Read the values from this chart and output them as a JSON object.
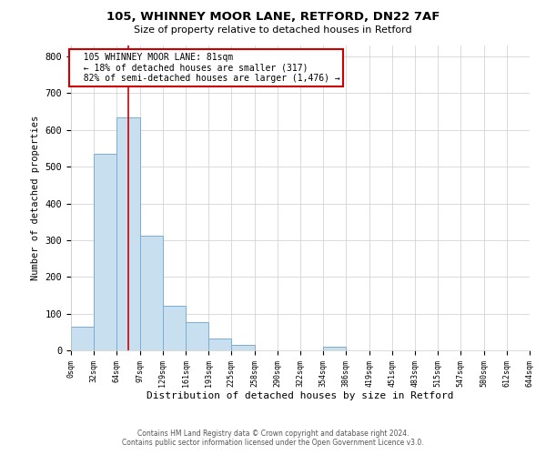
{
  "title": "105, WHINNEY MOOR LANE, RETFORD, DN22 7AF",
  "subtitle": "Size of property relative to detached houses in Retford",
  "xlabel": "Distribution of detached houses by size in Retford",
  "ylabel": "Number of detached properties",
  "bin_edges": [
    0,
    32,
    64,
    97,
    129,
    161,
    193,
    225,
    258,
    290,
    322,
    354,
    386,
    419,
    451,
    483,
    515,
    547,
    580,
    612,
    644
  ],
  "bin_labels": [
    "0sqm",
    "32sqm",
    "64sqm",
    "97sqm",
    "129sqm",
    "161sqm",
    "193sqm",
    "225sqm",
    "258sqm",
    "290sqm",
    "322sqm",
    "354sqm",
    "386sqm",
    "419sqm",
    "451sqm",
    "483sqm",
    "515sqm",
    "547sqm",
    "580sqm",
    "612sqm",
    "644sqm"
  ],
  "counts": [
    65,
    535,
    635,
    312,
    121,
    76,
    32,
    14,
    0,
    0,
    0,
    9,
    0,
    0,
    0,
    0,
    0,
    0,
    0,
    0
  ],
  "bar_color": "#c8dff0",
  "bar_edge_color": "#7aaed4",
  "property_size": 81,
  "property_label": "105 WHINNEY MOOR LANE: 81sqm",
  "pct_smaller": 18,
  "n_smaller": 317,
  "pct_larger_semi": 82,
  "n_larger_semi": 1476,
  "vline_color": "#cc0000",
  "annotation_box_color": "#cc0000",
  "ylim": [
    0,
    830
  ],
  "background_color": "#ffffff",
  "footer_line1": "Contains HM Land Registry data © Crown copyright and database right 2024.",
  "footer_line2": "Contains public sector information licensed under the Open Government Licence v3.0."
}
